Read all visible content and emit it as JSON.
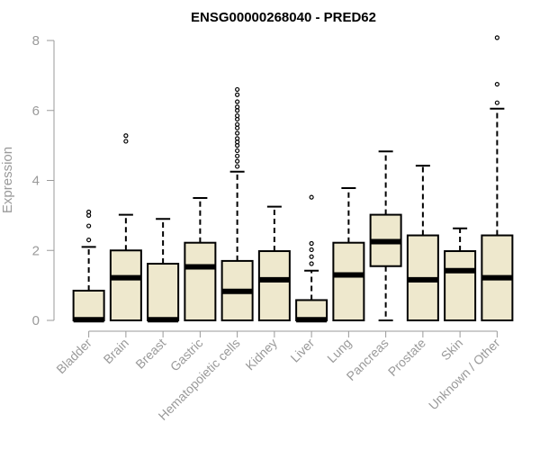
{
  "chart_data": {
    "type": "boxplot",
    "title": "ENSG00000268040 - PRED62",
    "ylabel": "Expression",
    "xlabel": "",
    "ylim": [
      0,
      8.3
    ],
    "yticks": [
      0,
      2,
      4,
      6,
      8
    ],
    "grid": false,
    "legend": "none",
    "colors": {
      "box_fill": "#EEE8CD",
      "box_stroke": "#000000",
      "median": "#000000",
      "axis": "#9a9a9a"
    },
    "categories": [
      "Bladder",
      "Brain",
      "Breast",
      "Gastric",
      "Hematopoietic cells",
      "Kidney",
      "Liver",
      "Lung",
      "Pancreas",
      "Prostate",
      "Skin",
      "Unknown / Other"
    ],
    "boxes": [
      {
        "q1": 0.0,
        "median": 0.02,
        "q3": 0.85,
        "whisker_low": 0.0,
        "whisker_high": 2.1,
        "outliers": [
          2.3,
          2.7,
          3.0,
          3.1
        ]
      },
      {
        "q1": 0.0,
        "median": 1.22,
        "q3": 2.0,
        "whisker_low": 0.0,
        "whisker_high": 3.02,
        "outliers": [
          5.12,
          5.28
        ]
      },
      {
        "q1": 0.0,
        "median": 0.02,
        "q3": 1.62,
        "whisker_low": 0.0,
        "whisker_high": 2.9,
        "outliers": []
      },
      {
        "q1": 0.0,
        "median": 1.53,
        "q3": 2.22,
        "whisker_low": 0.0,
        "whisker_high": 3.5,
        "outliers": []
      },
      {
        "q1": 0.0,
        "median": 0.83,
        "q3": 1.7,
        "whisker_low": 0.0,
        "whisker_high": 4.25,
        "outliers": [
          4.4,
          4.55,
          4.7,
          4.85,
          5.0,
          5.1,
          5.2,
          5.35,
          5.5,
          5.6,
          5.75,
          5.85,
          6.0,
          6.1,
          6.25,
          6.45,
          6.6
        ]
      },
      {
        "q1": 0.0,
        "median": 1.16,
        "q3": 1.98,
        "whisker_low": 0.0,
        "whisker_high": 3.25,
        "outliers": []
      },
      {
        "q1": 0.0,
        "median": 0.02,
        "q3": 0.58,
        "whisker_low": 0.0,
        "whisker_high": 1.42,
        "outliers": [
          1.62,
          1.82,
          2.02,
          2.2,
          3.52
        ]
      },
      {
        "q1": 0.0,
        "median": 1.3,
        "q3": 2.22,
        "whisker_low": 0.0,
        "whisker_high": 3.78,
        "outliers": []
      },
      {
        "q1": 1.55,
        "median": 2.25,
        "q3": 3.02,
        "whisker_low": 0.0,
        "whisker_high": 4.83,
        "outliers": []
      },
      {
        "q1": 0.0,
        "median": 1.16,
        "q3": 2.43,
        "whisker_low": 0.0,
        "whisker_high": 4.42,
        "outliers": []
      },
      {
        "q1": 0.0,
        "median": 1.42,
        "q3": 1.98,
        "whisker_low": 0.0,
        "whisker_high": 2.63,
        "outliers": []
      },
      {
        "q1": 0.0,
        "median": 1.22,
        "q3": 2.43,
        "whisker_low": 0.0,
        "whisker_high": 6.05,
        "outliers": [
          6.22,
          6.75,
          8.08
        ]
      }
    ]
  }
}
